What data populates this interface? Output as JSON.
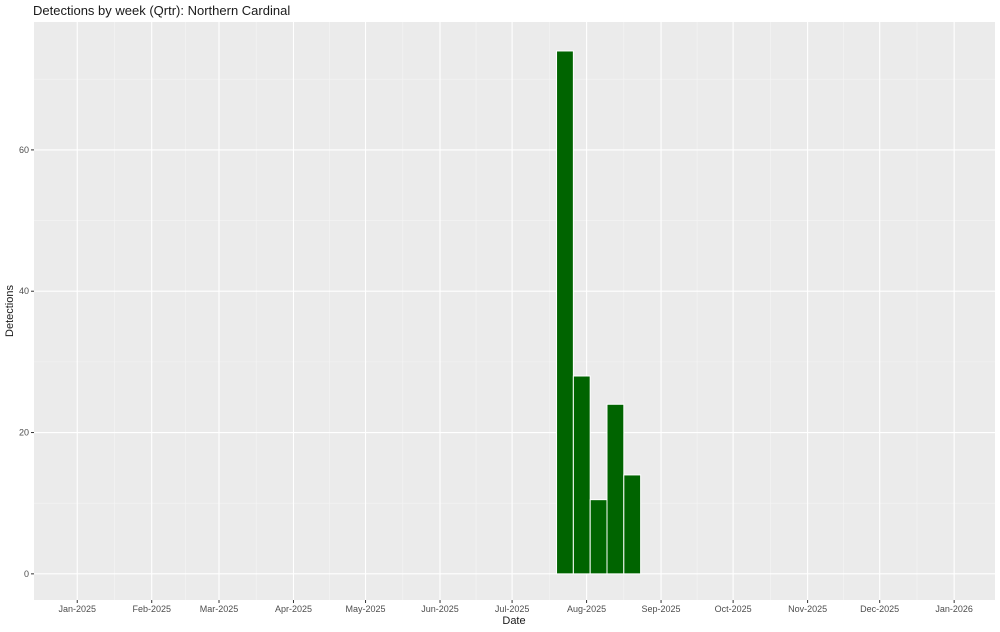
{
  "chart_data": {
    "type": "bar",
    "title": "Detections by week (Qrtr): Northern Cardinal",
    "x_label": "Date",
    "y_label": "Detections",
    "x": [
      "2025-07-23",
      "2025-07-30",
      "2025-08-06",
      "2025-08-13",
      "2025-08-20"
    ],
    "values": [
      74,
      28,
      10.5,
      24,
      14
    ],
    "color": "#006400",
    "xlim": [
      "2024-12-14",
      "2026-01-18"
    ],
    "xticks": [
      {
        "value": "2025-01-01",
        "label": "Jan-2025"
      },
      {
        "value": "2025-02-01",
        "label": "Feb-2025"
      },
      {
        "value": "2025-03-01",
        "label": "Mar-2025"
      },
      {
        "value": "2025-04-01",
        "label": "Apr-2025"
      },
      {
        "value": "2025-05-01",
        "label": "May-2025"
      },
      {
        "value": "2025-06-01",
        "label": "Jun-2025"
      },
      {
        "value": "2025-07-01",
        "label": "Jul-2025"
      },
      {
        "value": "2025-08-01",
        "label": "Aug-2025"
      },
      {
        "value": "2025-09-01",
        "label": "Sep-2025"
      },
      {
        "value": "2025-10-01",
        "label": "Oct-2025"
      },
      {
        "value": "2025-11-01",
        "label": "Nov-2025"
      },
      {
        "value": "2025-12-01",
        "label": "Dec-2025"
      },
      {
        "value": "2026-01-01",
        "label": "Jan-2026"
      }
    ],
    "ylim": [
      -3.7,
      78.1
    ],
    "yticks": [
      0,
      20,
      40,
      60
    ],
    "grid": true
  }
}
